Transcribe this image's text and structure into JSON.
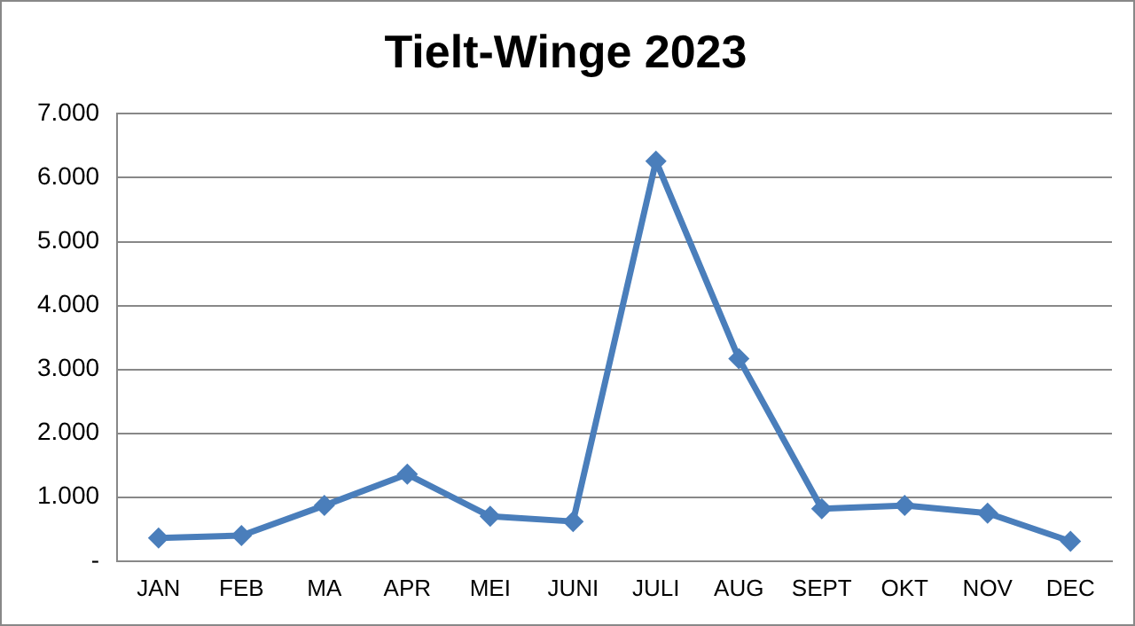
{
  "chart_data": {
    "type": "line",
    "title": "Tielt-Winge 2023",
    "categories": [
      "JAN",
      "FEB",
      "MA",
      "APR",
      "MEI",
      "JUNI",
      "JULI",
      "AUG",
      "SEPT",
      "OKT",
      "NOV",
      "DEC"
    ],
    "series": [
      {
        "color": "#4a7ebb",
        "values": [
          360,
          400,
          870,
          1360,
          700,
          620,
          6260,
          3170,
          820,
          870,
          750,
          310
        ]
      }
    ],
    "ylim": [
      0,
      7000
    ],
    "yticks": [
      {
        "value": 0,
        "label": "-"
      },
      {
        "value": 1000,
        "label": "1.000"
      },
      {
        "value": 2000,
        "label": "2.000"
      },
      {
        "value": 3000,
        "label": "3.000"
      },
      {
        "value": 4000,
        "label": "4.000"
      },
      {
        "value": 5000,
        "label": "5.000"
      },
      {
        "value": 6000,
        "label": "6.000"
      },
      {
        "value": 7000,
        "label": "7.000"
      }
    ],
    "grid": "y",
    "legend": false,
    "marker": "diamond",
    "line_style": "solid"
  }
}
